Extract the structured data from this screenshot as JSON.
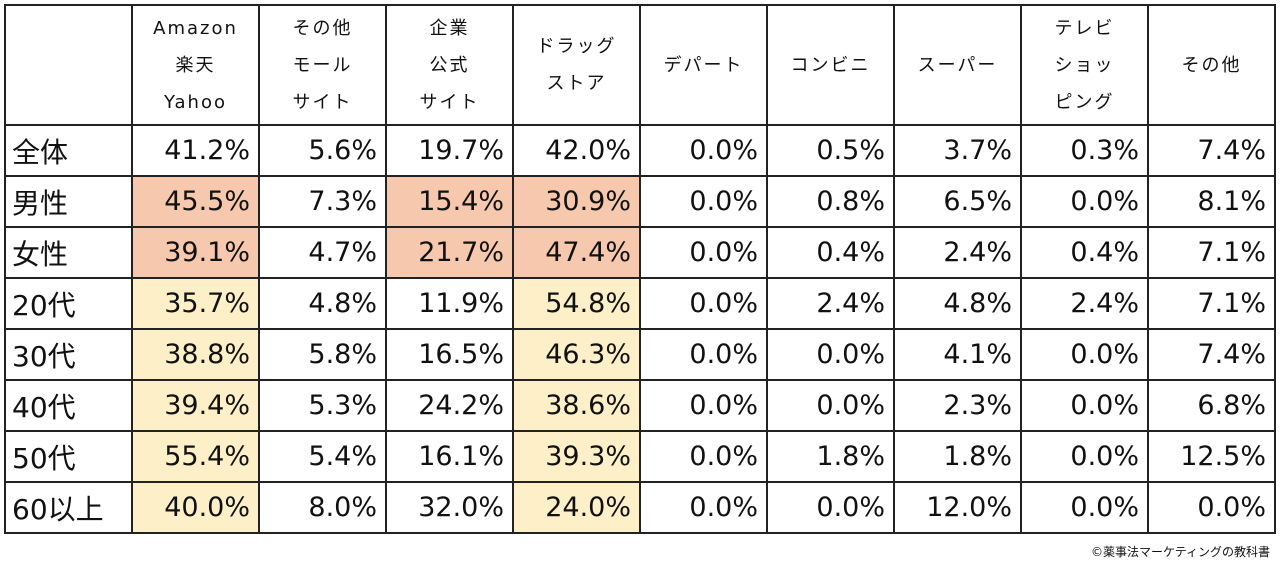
{
  "chart_data": {
    "type": "table",
    "columns": [
      "",
      "Amazon\n楽天\nYahoo",
      "その他\nモール\nサイト",
      "企業\n公式\nサイト",
      "ドラッグ\nストア",
      "デパート",
      "コンビニ",
      "スーパー",
      "テレビ\nショッ\nピング",
      "その他"
    ],
    "rows": [
      {
        "label": "全体",
        "values": [
          "41.2%",
          "5.6%",
          "19.7%",
          "42.0%",
          "0.0%",
          "0.5%",
          "3.7%",
          "0.3%",
          "7.4%"
        ],
        "highlight": [
          "",
          "",
          "",
          "",
          "",
          "",
          "",
          "",
          ""
        ]
      },
      {
        "label": "男性",
        "values": [
          "45.5%",
          "7.3%",
          "15.4%",
          "30.9%",
          "0.0%",
          "0.8%",
          "6.5%",
          "0.0%",
          "8.1%"
        ],
        "highlight": [
          "gender",
          "",
          "gender",
          "gender",
          "",
          "",
          "",
          "",
          ""
        ]
      },
      {
        "label": "女性",
        "values": [
          "39.1%",
          "4.7%",
          "21.7%",
          "47.4%",
          "0.0%",
          "0.4%",
          "2.4%",
          "0.4%",
          "7.1%"
        ],
        "highlight": [
          "gender",
          "",
          "gender",
          "gender",
          "",
          "",
          "",
          "",
          ""
        ]
      },
      {
        "label": "20代",
        "values": [
          "35.7%",
          "4.8%",
          "11.9%",
          "54.8%",
          "0.0%",
          "2.4%",
          "4.8%",
          "2.4%",
          "7.1%"
        ],
        "highlight": [
          "age",
          "",
          "",
          "age",
          "",
          "",
          "",
          "",
          ""
        ]
      },
      {
        "label": "30代",
        "values": [
          "38.8%",
          "5.8%",
          "16.5%",
          "46.3%",
          "0.0%",
          "0.0%",
          "4.1%",
          "0.0%",
          "7.4%"
        ],
        "highlight": [
          "age",
          "",
          "",
          "age",
          "",
          "",
          "",
          "",
          ""
        ]
      },
      {
        "label": "40代",
        "values": [
          "39.4%",
          "5.3%",
          "24.2%",
          "38.6%",
          "0.0%",
          "0.0%",
          "2.3%",
          "0.0%",
          "6.8%"
        ],
        "highlight": [
          "age",
          "",
          "",
          "age",
          "",
          "",
          "",
          "",
          ""
        ]
      },
      {
        "label": "50代",
        "values": [
          "55.4%",
          "5.4%",
          "16.1%",
          "39.3%",
          "0.0%",
          "1.8%",
          "1.8%",
          "0.0%",
          "12.5%"
        ],
        "highlight": [
          "age",
          "",
          "",
          "age",
          "",
          "",
          "",
          "",
          ""
        ]
      },
      {
        "label": "60以上",
        "values": [
          "40.0%",
          "8.0%",
          "32.0%",
          "24.0%",
          "0.0%",
          "0.0%",
          "12.0%",
          "0.0%",
          "0.0%"
        ],
        "highlight": [
          "age",
          "",
          "",
          "age",
          "",
          "",
          "",
          "",
          ""
        ]
      }
    ],
    "highlight_colors": {
      "gender": "#f6c8ad",
      "age": "#fdf0c8"
    }
  },
  "credit": "©薬事法マーケティングの教科書"
}
